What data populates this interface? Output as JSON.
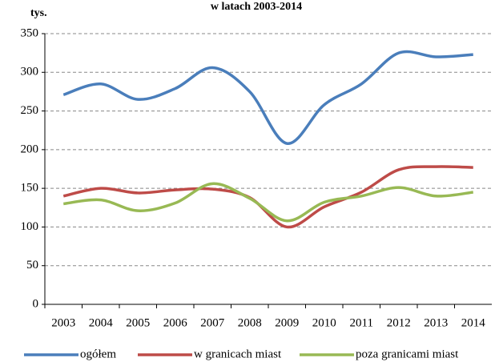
{
  "chart_data": {
    "type": "line",
    "title": "w latach 2003-2014",
    "y_label": "tys.",
    "categories": [
      "2003",
      "2004",
      "2005",
      "2006",
      "2007",
      "2008",
      "2009",
      "2010",
      "2011",
      "2012",
      "2013",
      "2014"
    ],
    "series": [
      {
        "name": "ogółem",
        "color": "#4a7ebb",
        "values": [
          271,
          285,
          265,
          279,
          306,
          275,
          208,
          258,
          285,
          325,
          320,
          323
        ]
      },
      {
        "name": "w granicach miast",
        "color": "#be4b48",
        "values": [
          140,
          150,
          144,
          148,
          149,
          138,
          100,
          126,
          145,
          174,
          178,
          177
        ]
      },
      {
        "name": "poza granicami miast",
        "color": "#98b954",
        "values": [
          130,
          135,
          121,
          131,
          156,
          137,
          108,
          132,
          140,
          151,
          140,
          145
        ]
      }
    ],
    "ylim": [
      0,
      350
    ],
    "yticks": [
      0,
      50,
      100,
      150,
      200,
      250,
      300,
      350
    ],
    "grid": true,
    "legend": "bottom"
  }
}
